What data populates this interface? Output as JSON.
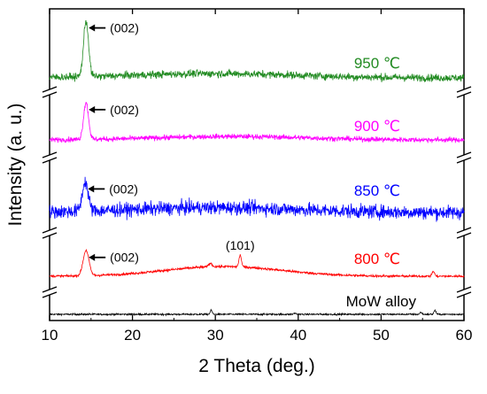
{
  "chart_data": {
    "type": "line",
    "xlabel": "2 Theta (deg.)",
    "ylabel": "Intensity (a. u.)",
    "xlim": [
      10,
      60
    ],
    "xticks": [
      10,
      20,
      30,
      40,
      50,
      60
    ],
    "y_ticks_shown": false,
    "grid": false,
    "legend": "none",
    "stacked_offset_with_axis_breaks": true,
    "series": [
      {
        "name": "MoW alloy",
        "color": "#000000",
        "baseline": 0.0,
        "noise": 0.18,
        "peaks": [
          {
            "x": 29.5,
            "height": 0.9,
            "width": 0.12
          },
          {
            "x": 39.6,
            "height": 0.25,
            "width": 0.15
          },
          {
            "x": 54.8,
            "height": 0.45,
            "width": 0.12
          },
          {
            "x": 56.5,
            "height": 0.9,
            "width": 0.12
          }
        ]
      },
      {
        "name": "800 ℃",
        "color": "#ff0000",
        "baseline": 0.0,
        "noise": 0.12,
        "hump": {
          "center": 31,
          "height": 1.0,
          "width": 7
        },
        "peaks": [
          {
            "x": 14.4,
            "height": 2.6,
            "width": 0.35
          },
          {
            "x": 33.0,
            "height": 1.2,
            "width": 0.15
          },
          {
            "x": 29.4,
            "height": 0.35,
            "width": 0.2
          },
          {
            "x": 56.3,
            "height": 0.5,
            "width": 0.15
          }
        ]
      },
      {
        "name": "850 ℃",
        "color": "#0000ff",
        "baseline": 0.0,
        "noise": 0.7,
        "hump": {
          "center": 30,
          "height": 0.5,
          "width": 10
        },
        "peaks": [
          {
            "x": 14.3,
            "height": 3.0,
            "width": 0.35
          }
        ]
      },
      {
        "name": "900 ℃",
        "color": "#ff00ff",
        "baseline": 0.0,
        "noise": 0.22,
        "hump": {
          "center": 32,
          "height": 0.3,
          "width": 9
        },
        "peaks": [
          {
            "x": 14.4,
            "height": 3.2,
            "width": 0.3
          }
        ]
      },
      {
        "name": "950 ℃",
        "color": "#228b22",
        "baseline": 0.0,
        "noise": 0.3,
        "hump": {
          "center": 30,
          "height": 0.35,
          "width": 10
        },
        "peaks": [
          {
            "x": 14.4,
            "height": 4.5,
            "width": 0.3
          }
        ]
      }
    ],
    "annotations": [
      {
        "series": "950 ℃",
        "text": "(002)",
        "x": 14.4,
        "arrow": true
      },
      {
        "series": "900 ℃",
        "text": "(002)",
        "x": 14.4,
        "arrow": true
      },
      {
        "series": "850 ℃",
        "text": "(002)",
        "x": 14.3,
        "arrow": true
      },
      {
        "series": "800 ℃",
        "text": "(002)",
        "x": 14.4,
        "arrow": true
      },
      {
        "series": "800 ℃",
        "text": "(101)",
        "x": 33.0,
        "arrow": false
      }
    ]
  }
}
